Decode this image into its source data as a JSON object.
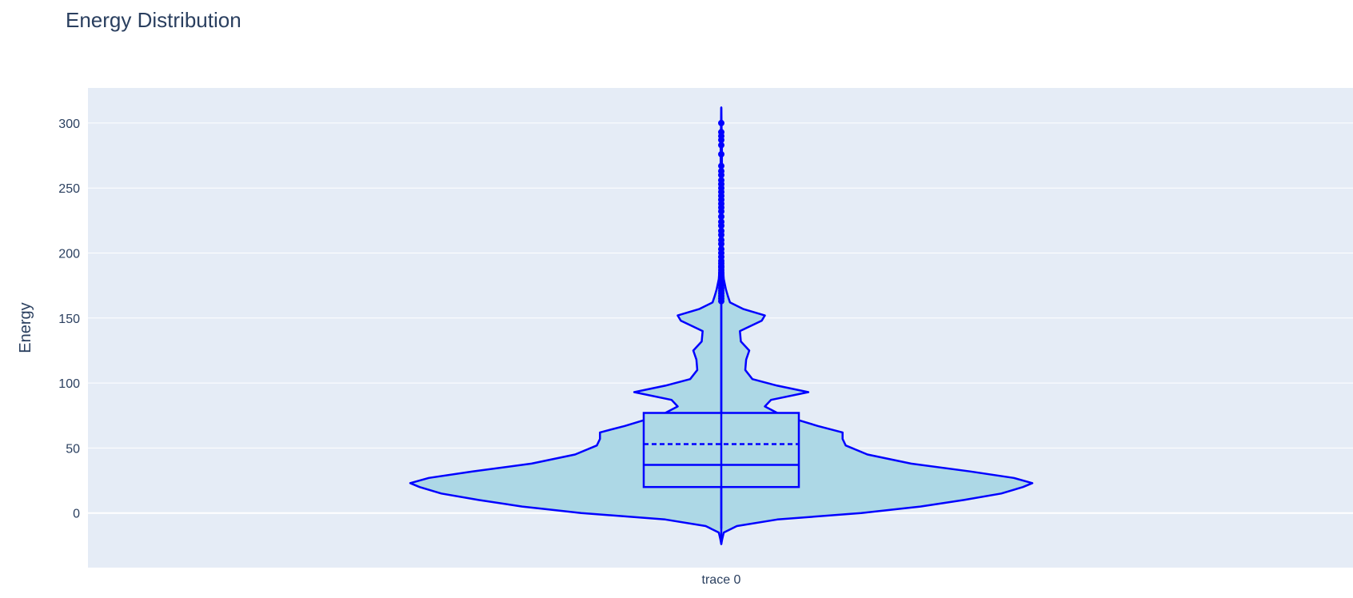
{
  "chart_data": {
    "type": "violin",
    "title": "Energy Distribution",
    "xlabel": "",
    "ylabel": "Energy",
    "categories": [
      "trace 0"
    ],
    "y_ticks": [
      0,
      50,
      100,
      150,
      200,
      250,
      300
    ],
    "ylim": [
      -42,
      327
    ],
    "grid": true,
    "legend": "none",
    "colors": {
      "plot_bg": "#e5ecf6",
      "grid": "#ffffff",
      "line": "#0000ff",
      "fill": "#add8e6",
      "text": "#2a3f5f"
    },
    "series": [
      {
        "category": "trace 0",
        "box": {
          "q1": 20,
          "median": 37,
          "mean": 53,
          "q3": 77
        },
        "whisker": {
          "low": -12,
          "high": 163
        },
        "span": [
          -24,
          312
        ],
        "density": [
          {
            "y": -24,
            "w": 0.0
          },
          {
            "y": -20,
            "w": 0.003
          },
          {
            "y": -15,
            "w": 0.008
          },
          {
            "y": -10,
            "w": 0.05
          },
          {
            "y": -5,
            "w": 0.18
          },
          {
            "y": 0,
            "w": 0.45
          },
          {
            "y": 5,
            "w": 0.64
          },
          {
            "y": 10,
            "w": 0.78
          },
          {
            "y": 15,
            "w": 0.9
          },
          {
            "y": 20,
            "w": 0.97
          },
          {
            "y": 23,
            "w": 1.0
          },
          {
            "y": 27,
            "w": 0.94
          },
          {
            "y": 32,
            "w": 0.8
          },
          {
            "y": 38,
            "w": 0.61
          },
          {
            "y": 45,
            "w": 0.47
          },
          {
            "y": 52,
            "w": 0.4
          },
          {
            "y": 57,
            "w": 0.39
          },
          {
            "y": 62,
            "w": 0.39
          },
          {
            "y": 67,
            "w": 0.31
          },
          {
            "y": 72,
            "w": 0.24
          },
          {
            "y": 77,
            "w": 0.18
          },
          {
            "y": 82,
            "w": 0.14
          },
          {
            "y": 87,
            "w": 0.16
          },
          {
            "y": 93,
            "w": 0.28
          },
          {
            "y": 98,
            "w": 0.18
          },
          {
            "y": 103,
            "w": 0.1
          },
          {
            "y": 110,
            "w": 0.077
          },
          {
            "y": 118,
            "w": 0.08
          },
          {
            "y": 125,
            "w": 0.09
          },
          {
            "y": 132,
            "w": 0.063
          },
          {
            "y": 140,
            "w": 0.06
          },
          {
            "y": 148,
            "w": 0.13
          },
          {
            "y": 152,
            "w": 0.14
          },
          {
            "y": 157,
            "w": 0.07
          },
          {
            "y": 162,
            "w": 0.028
          },
          {
            "y": 167,
            "w": 0.021
          },
          {
            "y": 172,
            "w": 0.015
          },
          {
            "y": 180,
            "w": 0.008
          },
          {
            "y": 190,
            "w": 0.005
          },
          {
            "y": 200,
            "w": 0.004
          },
          {
            "y": 220,
            "w": 0.003
          },
          {
            "y": 250,
            "w": 0.002
          },
          {
            "y": 280,
            "w": 0.002
          },
          {
            "y": 312,
            "w": 0.0
          }
        ],
        "outliers": [
          163,
          165,
          167,
          169,
          171,
          173,
          175,
          177,
          178,
          180,
          182,
          184,
          185,
          187,
          189,
          190,
          192,
          194,
          197,
          200,
          203,
          207,
          210,
          214,
          217,
          221,
          224,
          228,
          232,
          235,
          238,
          241,
          244,
          247,
          250,
          253,
          256,
          260,
          263,
          267,
          276,
          283,
          287,
          290,
          293,
          300
        ]
      }
    ]
  }
}
